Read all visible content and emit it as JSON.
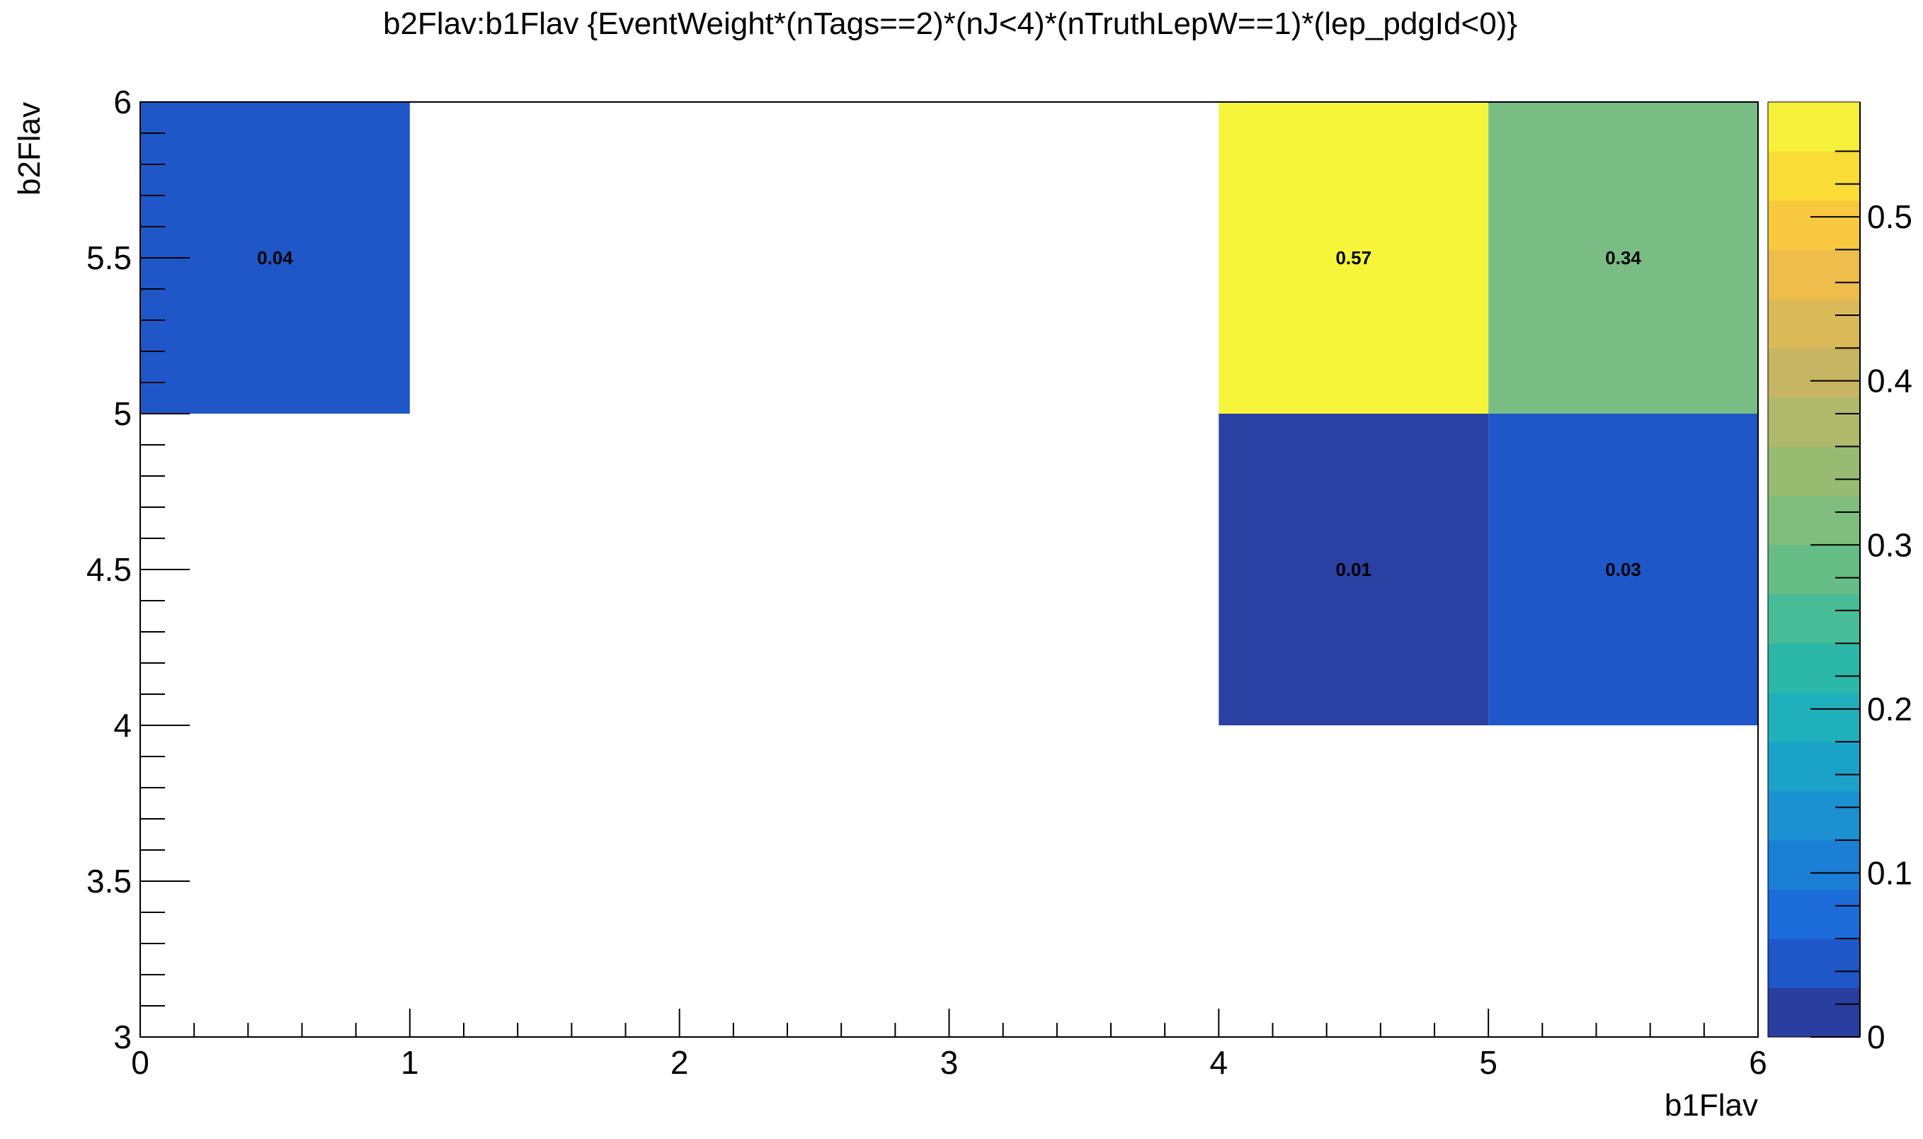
{
  "chart_data": {
    "type": "heatmap",
    "title": "b2Flav:b1Flav {EventWeight*(nTags==2)*(nJ<4)*(nTruthLepW==1)*(lep_pdgId<0)}",
    "xlabel": "b1Flav",
    "ylabel": "b2Flav",
    "xlim": [
      0,
      6
    ],
    "ylim": [
      3,
      6
    ],
    "x_ticks": [
      "0",
      "1",
      "2",
      "3",
      "4",
      "5",
      "6"
    ],
    "y_ticks": [
      "3",
      "3.5",
      "4",
      "4.5",
      "5",
      "5.5",
      "6"
    ],
    "colorbar": {
      "range": [
        0,
        0.57
      ],
      "ticks": [
        "0",
        "0.1",
        "0.2",
        "0.3",
        "0.4",
        "0.5"
      ],
      "palette": [
        "#2a3ea0",
        "#1f57c8",
        "#1c6cd9",
        "#1b7fd6",
        "#1c91d2",
        "#1ba2c9",
        "#20b0bc",
        "#2cb8a8",
        "#46bc97",
        "#66bd86",
        "#7fbd7c",
        "#98bb72",
        "#b0b96a",
        "#c6b663",
        "#dab958",
        "#eebd4c",
        "#f8c83e",
        "#f9dc35",
        "#f6f03a"
      ]
    },
    "cells": [
      {
        "x0": 0,
        "x1": 1,
        "y0": 5,
        "y1": 6,
        "value": 0.04,
        "label": "0.04",
        "color": "#1f57c8"
      },
      {
        "x0": 4,
        "x1": 5,
        "y0": 5,
        "y1": 6,
        "value": 0.57,
        "label": "0.57",
        "color": "#f6f53a"
      },
      {
        "x0": 5,
        "x1": 6,
        "y0": 5,
        "y1": 6,
        "value": 0.34,
        "label": "0.34",
        "color": "#79bd84"
      },
      {
        "x0": 4,
        "x1": 5,
        "y0": 4,
        "y1": 5,
        "value": 0.01,
        "label": "0.01",
        "color": "#2a40a3"
      },
      {
        "x0": 5,
        "x1": 6,
        "y0": 4,
        "y1": 5,
        "value": 0.03,
        "label": "0.03",
        "color": "#1e57c8"
      }
    ]
  }
}
